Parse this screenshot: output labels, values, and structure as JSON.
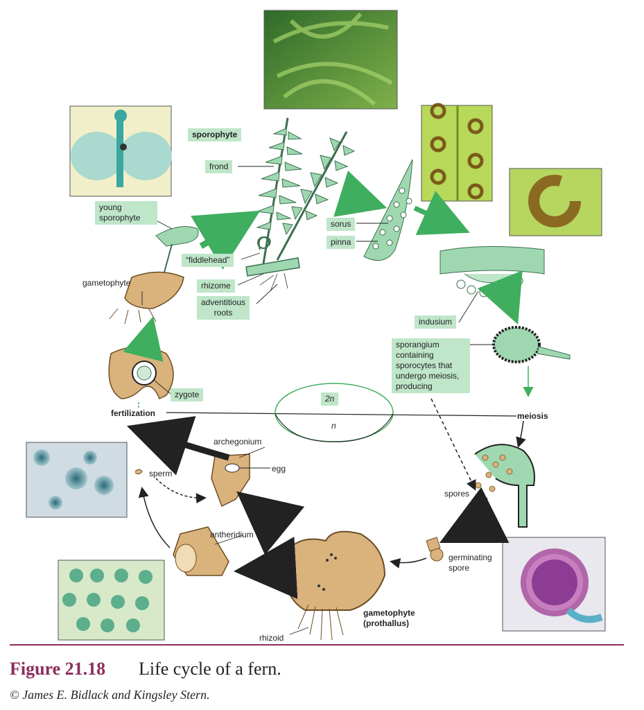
{
  "labels": {
    "sporophyte": "sporophyte",
    "frond": "frond",
    "young_sporophyte": [
      "young",
      "sporophyte"
    ],
    "sorus": "sorus",
    "pinna": "pinna",
    "fiddlehead": "“fiddlehead”",
    "gametophyte_top": "gametophyte",
    "rhizome": "rhizome",
    "adventitious_roots": [
      "adventitious",
      "roots"
    ],
    "indusium": "indusium",
    "sporangium": [
      "sporangium",
      "containing",
      "sporocytes that",
      "undergo meiosis,",
      "producing"
    ],
    "zygote": "zygote",
    "fertilization": "fertilization",
    "two_n": "2n",
    "n": "n",
    "meiosis": "meiosis",
    "archegonium": "archegonium",
    "egg": "egg",
    "sperm": "sperm",
    "spores": "spores",
    "antheridium": "antheridium",
    "germinating_spore": [
      "germinating",
      "spore"
    ],
    "gametophyte_prothallus": [
      "gametophyte",
      "(prothallus)"
    ],
    "rhizoid": "rhizoid"
  },
  "caption": {
    "figure_number": "Figure 21.18",
    "title": "Life cycle of a fern.",
    "credit": "© James E. Bidlack and Kingsley Stern."
  },
  "colors": {
    "label_bg": "#bfe6c9",
    "arrow_green": "#3fae5e",
    "caption_accent": "#8a2d5c",
    "tissue_tan": "#d9b27c",
    "plant_green": "#9fd8b0"
  }
}
